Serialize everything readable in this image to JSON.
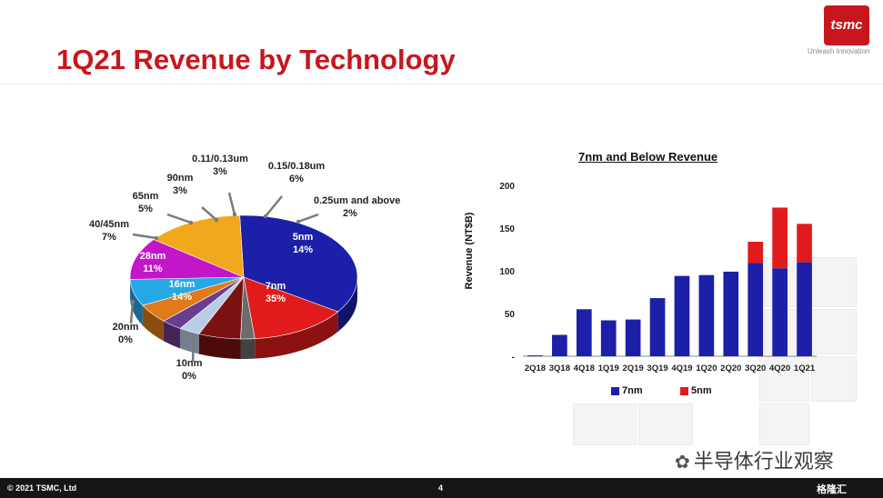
{
  "slide": {
    "title": "1Q21 Revenue by Technology",
    "logo_text": "tsmc",
    "tagline": "Unleash Innovation",
    "footer_copyright": "© 2021 TSMC, Ltd",
    "page_number": "4",
    "watermark": "半导体行业观察",
    "brand": "格隆汇"
  },
  "chart_data": [
    {
      "type": "pie",
      "title": "",
      "slices": [
        {
          "name": "7nm",
          "value": 35,
          "label": "35%",
          "color": "#1c1fa8"
        },
        {
          "name": "5nm",
          "value": 14,
          "label": "14%",
          "color": "#e11b1b"
        },
        {
          "name": "0.25um and above",
          "value": 2,
          "label": "2%",
          "color": "#6b6b6b"
        },
        {
          "name": "0.15/0.18um",
          "value": 6,
          "label": "6%",
          "color": "#7a1212"
        },
        {
          "name": "0.11/0.13um",
          "value": 3,
          "label": "3%",
          "color": "#b9cde6"
        },
        {
          "name": "90nm",
          "value": 3,
          "label": "3%",
          "color": "#6a3d8f"
        },
        {
          "name": "65nm",
          "value": 5,
          "label": "5%",
          "color": "#e07a1a"
        },
        {
          "name": "40/45nm",
          "value": 7,
          "label": "7%",
          "color": "#27a8e6"
        },
        {
          "name": "28nm",
          "value": 11,
          "label": "11%",
          "color": "#c316c9"
        },
        {
          "name": "16nm",
          "value": 14,
          "label": "14%",
          "color": "#f0a91c"
        },
        {
          "name": "10nm",
          "value": 0,
          "label": "0%",
          "color": "#bbbbbb"
        },
        {
          "name": "20nm",
          "value": 0,
          "label": "0%",
          "color": "#bbbbbb"
        }
      ]
    },
    {
      "type": "bar",
      "stacked": true,
      "title": "7nm and Below Revenue",
      "xlabel": "",
      "ylabel": "Revenue (NT$B)",
      "ylim": [
        0,
        200
      ],
      "yticks": [
        "-",
        "50",
        "100",
        "150",
        "200"
      ],
      "categories": [
        "2Q18",
        "3Q18",
        "4Q18",
        "1Q19",
        "2Q19",
        "3Q19",
        "4Q19",
        "1Q20",
        "2Q20",
        "3Q20",
        "4Q20",
        "1Q21"
      ],
      "series": [
        {
          "name": "7nm",
          "color": "#1c1fa8",
          "values": [
            1,
            25,
            55,
            42,
            43,
            68,
            94,
            95,
            99,
            109,
            103,
            110
          ]
        },
        {
          "name": "5nm",
          "color": "#e11b1b",
          "values": [
            0,
            0,
            0,
            0,
            0,
            0,
            0,
            0,
            0,
            25,
            71,
            45
          ]
        }
      ],
      "grid": false,
      "legend": "bottom"
    }
  ]
}
